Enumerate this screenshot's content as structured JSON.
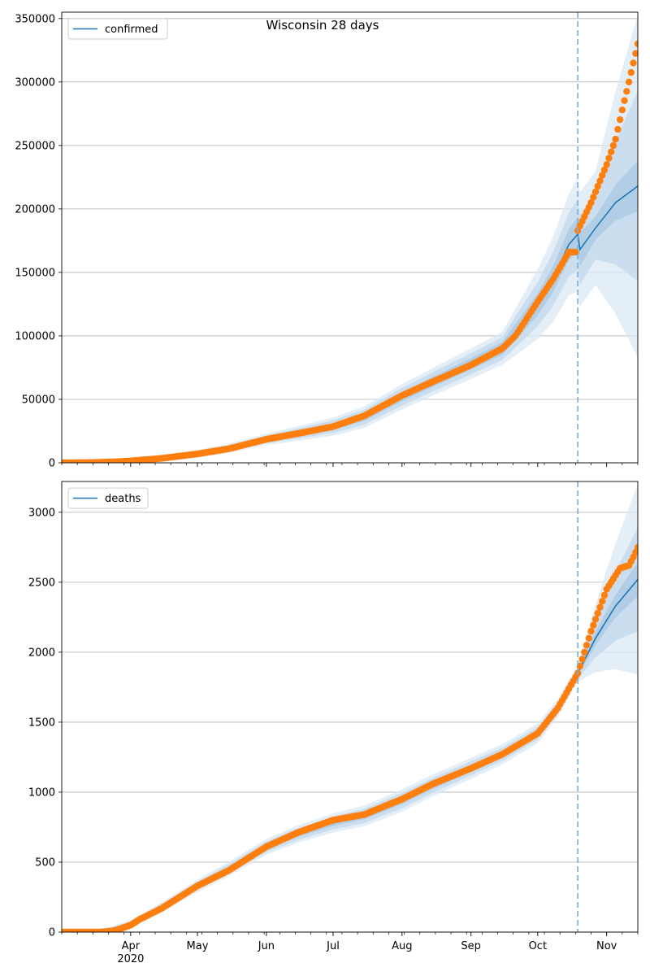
{
  "figure": {
    "title": "Wisconsin 28 days",
    "colors": {
      "model": "#1f77b4",
      "observed": "#ff7f0e",
      "band_outer": "#dbe8f4",
      "band_mid": "#c3d8ec",
      "band_inner": "#a9c8e3",
      "grid": "#b0b0b0",
      "forecast_line": "#7aaed6"
    }
  },
  "chart_data": [
    {
      "type": "line",
      "panel": "confirmed",
      "legend": {
        "label": "confirmed",
        "placement": "top-left"
      },
      "x_domain": [
        "2020-03-01",
        "2020-11-15"
      ],
      "ylim": [
        0,
        355000
      ],
      "y_ticks": [
        0,
        50000,
        100000,
        150000,
        200000,
        250000,
        300000,
        350000
      ],
      "grid": "horizontal",
      "forecast_start": "2020-10-19",
      "model": {
        "name": "confirmed",
        "points": [
          [
            "2020-03-01",
            0
          ],
          [
            "2020-03-15",
            100
          ],
          [
            "2020-04-01",
            1500
          ],
          [
            "2020-04-15",
            3500
          ],
          [
            "2020-05-01",
            7000
          ],
          [
            "2020-05-15",
            11500
          ],
          [
            "2020-06-01",
            18500
          ],
          [
            "2020-06-15",
            23000
          ],
          [
            "2020-07-01",
            28500
          ],
          [
            "2020-07-15",
            36000
          ],
          [
            "2020-08-01",
            52000
          ],
          [
            "2020-08-15",
            64000
          ],
          [
            "2020-09-01",
            78000
          ],
          [
            "2020-09-15",
            90000
          ],
          [
            "2020-10-01",
            125000
          ],
          [
            "2020-10-08",
            145000
          ],
          [
            "2020-10-15",
            172000
          ],
          [
            "2020-10-19",
            180000
          ],
          [
            "2020-10-20",
            168000
          ],
          [
            "2020-10-27",
            185000
          ],
          [
            "2020-11-05",
            205000
          ],
          [
            "2020-11-15",
            218000
          ]
        ],
        "band_widths": [
          {
            "date": "2020-03-01",
            "w": [
              0,
              0,
              0
            ]
          },
          {
            "date": "2020-06-01",
            "w": [
              1500,
              3000,
              4500
            ]
          },
          {
            "date": "2020-08-01",
            "w": [
              3500,
              7000,
              10000
            ]
          },
          {
            "date": "2020-09-15",
            "w": [
              5000,
              9000,
              13000
            ]
          },
          {
            "date": "2020-10-15",
            "w": [
              12000,
              25000,
              40000
            ]
          },
          {
            "date": "2020-10-19",
            "w": [
              14000,
              28000,
              45000
            ]
          },
          {
            "date": "2020-10-27",
            "w": [
              9000,
              25000,
              45000
            ]
          },
          {
            "date": "2020-11-15",
            "w": [
              20000,
              75000,
              135000
            ]
          }
        ]
      },
      "observed": {
        "points": [
          [
            "2020-03-01",
            0
          ],
          [
            "2020-03-15",
            200
          ],
          [
            "2020-03-25",
            800
          ],
          [
            "2020-04-01",
            1500
          ],
          [
            "2020-04-15",
            3500
          ],
          [
            "2020-05-01",
            7000
          ],
          [
            "2020-05-15",
            11000
          ],
          [
            "2020-06-01",
            18500
          ],
          [
            "2020-06-15",
            23000
          ],
          [
            "2020-07-01",
            28500
          ],
          [
            "2020-07-15",
            37000
          ],
          [
            "2020-08-01",
            53000
          ],
          [
            "2020-08-15",
            64000
          ],
          [
            "2020-09-01",
            77000
          ],
          [
            "2020-09-15",
            90000
          ],
          [
            "2020-09-21",
            100000
          ],
          [
            "2020-10-01",
            127000
          ],
          [
            "2020-10-08",
            145000
          ],
          [
            "2020-10-15",
            166000
          ],
          [
            "2020-10-18",
            166000
          ],
          [
            "2020-10-19",
            183000
          ],
          [
            "2020-10-25",
            205000
          ],
          [
            "2020-11-01",
            235000
          ],
          [
            "2020-11-05",
            255000
          ],
          [
            "2020-11-08",
            278000
          ],
          [
            "2020-11-11",
            300000
          ],
          [
            "2020-11-15",
            330000
          ]
        ]
      },
      "x_ticks": [
        {
          "date": "2020-04-01",
          "label": "Apr"
        },
        {
          "date": "2020-05-01",
          "label": "May"
        },
        {
          "date": "2020-06-01",
          "label": "Jun"
        },
        {
          "date": "2020-07-01",
          "label": "Jul"
        },
        {
          "date": "2020-08-01",
          "label": "Aug"
        },
        {
          "date": "2020-09-01",
          "label": "Sep"
        },
        {
          "date": "2020-10-01",
          "label": "Oct"
        },
        {
          "date": "2020-11-01",
          "label": "Nov"
        }
      ]
    },
    {
      "type": "line",
      "panel": "deaths",
      "legend": {
        "label": "deaths",
        "placement": "top-left"
      },
      "x_domain": [
        "2020-03-01",
        "2020-11-15"
      ],
      "ylim": [
        0,
        3220
      ],
      "y_ticks": [
        0,
        500,
        1000,
        1500,
        2000,
        2500,
        3000
      ],
      "grid": "horizontal",
      "forecast_start": "2020-10-19",
      "x_tick_labels_visible": true,
      "x_year_label": "2020",
      "model": {
        "name": "deaths",
        "points": [
          [
            "2020-03-01",
            0
          ],
          [
            "2020-03-20",
            10
          ],
          [
            "2020-04-01",
            60
          ],
          [
            "2020-04-15",
            180
          ],
          [
            "2020-05-01",
            330
          ],
          [
            "2020-05-15",
            450
          ],
          [
            "2020-06-01",
            610
          ],
          [
            "2020-06-15",
            700
          ],
          [
            "2020-07-01",
            780
          ],
          [
            "2020-07-15",
            830
          ],
          [
            "2020-08-01",
            940
          ],
          [
            "2020-08-15",
            1050
          ],
          [
            "2020-09-01",
            1170
          ],
          [
            "2020-09-15",
            1270
          ],
          [
            "2020-10-01",
            1420
          ],
          [
            "2020-10-10",
            1600
          ],
          [
            "2020-10-19",
            1850
          ],
          [
            "2020-10-27",
            2100
          ],
          [
            "2020-11-05",
            2330
          ],
          [
            "2020-11-15",
            2520
          ]
        ],
        "band_widths": [
          {
            "date": "2020-03-01",
            "w": [
              0,
              0,
              0
            ]
          },
          {
            "date": "2020-05-01",
            "w": [
              15,
              30,
              45
            ]
          },
          {
            "date": "2020-08-01",
            "w": [
              25,
              55,
              80
            ]
          },
          {
            "date": "2020-10-01",
            "w": [
              25,
              45,
              70
            ]
          },
          {
            "date": "2020-10-19",
            "w": [
              20,
              40,
              60
            ]
          },
          {
            "date": "2020-11-15",
            "w": [
              120,
              370,
              680
            ]
          }
        ]
      },
      "observed": {
        "points": [
          [
            "2020-03-01",
            0
          ],
          [
            "2020-03-18",
            0
          ],
          [
            "2020-03-25",
            10
          ],
          [
            "2020-04-01",
            50
          ],
          [
            "2020-04-05",
            90
          ],
          [
            "2020-04-15",
            170
          ],
          [
            "2020-05-01",
            330
          ],
          [
            "2020-05-15",
            440
          ],
          [
            "2020-06-01",
            610
          ],
          [
            "2020-06-15",
            710
          ],
          [
            "2020-07-01",
            800
          ],
          [
            "2020-07-15",
            840
          ],
          [
            "2020-08-01",
            950
          ],
          [
            "2020-08-15",
            1060
          ],
          [
            "2020-09-01",
            1170
          ],
          [
            "2020-09-15",
            1270
          ],
          [
            "2020-10-01",
            1420
          ],
          [
            "2020-10-10",
            1600
          ],
          [
            "2020-10-19",
            1850
          ],
          [
            "2020-10-25",
            2150
          ],
          [
            "2020-11-01",
            2450
          ],
          [
            "2020-11-07",
            2600
          ],
          [
            "2020-11-11",
            2620
          ],
          [
            "2020-11-13",
            2680
          ],
          [
            "2020-11-15",
            2750
          ]
        ]
      },
      "x_ticks": [
        {
          "date": "2020-04-01",
          "label": "Apr"
        },
        {
          "date": "2020-05-01",
          "label": "May"
        },
        {
          "date": "2020-06-01",
          "label": "Jun"
        },
        {
          "date": "2020-07-01",
          "label": "Jul"
        },
        {
          "date": "2020-08-01",
          "label": "Aug"
        },
        {
          "date": "2020-09-01",
          "label": "Sep"
        },
        {
          "date": "2020-10-01",
          "label": "Oct"
        },
        {
          "date": "2020-11-01",
          "label": "Nov"
        }
      ]
    }
  ]
}
